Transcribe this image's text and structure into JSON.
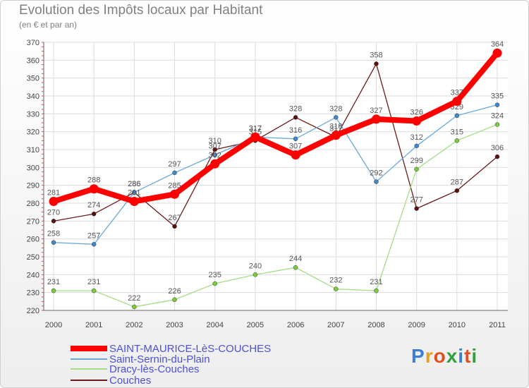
{
  "title": "Evolution des Impôts locaux par Habitant",
  "subtitle": "(en € et par an)",
  "logo": "Proxiti",
  "chart_data": {
    "type": "line",
    "title": "Evolution des Impôts locaux par Habitant",
    "ylabel": "(en € et par an)",
    "xlabel": "",
    "x": [
      2000,
      2001,
      2002,
      2003,
      2004,
      2005,
      2006,
      2007,
      2008,
      2009,
      2010,
      2011
    ],
    "ylim": [
      220,
      370
    ],
    "yticks": [
      220,
      230,
      240,
      250,
      260,
      270,
      280,
      290,
      300,
      310,
      320,
      330,
      340,
      350,
      360,
      370
    ],
    "grid": true,
    "legend_position": "bottom-left",
    "series": [
      {
        "name": "Couches",
        "color": "#6b1a1a",
        "marker": "#5a1010",
        "values": [
          270,
          274,
          286,
          267,
          310,
          315,
          328,
          317,
          358,
          277,
          287,
          306
        ]
      },
      {
        "name": "Dracy-lès-Couches",
        "color": "#a6dc84",
        "marker": "#7acd3a",
        "values": [
          231,
          231,
          222,
          226,
          235,
          240,
          244,
          232,
          231,
          299,
          315,
          324
        ]
      },
      {
        "name": "Saint-Sernin-du-Plain",
        "color": "#6aa8d8",
        "marker": "#3f88cc",
        "values": [
          258,
          257,
          286,
          297,
          307,
          317,
          316,
          328,
          292,
          312,
          329,
          335
        ]
      },
      {
        "name": "SAINT-MAURICE-LèS-COUCHES",
        "color": "#ff0000",
        "marker": "#ff0000",
        "values": [
          281,
          288,
          281,
          285,
          302,
          317,
          307,
          318,
          327,
          326,
          337,
          364
        ]
      }
    ],
    "legend": [
      "SAINT-MAURICE-LèS-COUCHES",
      "Saint-Sernin-du-Plain",
      "Dracy-lès-Couches",
      "Couches"
    ]
  }
}
